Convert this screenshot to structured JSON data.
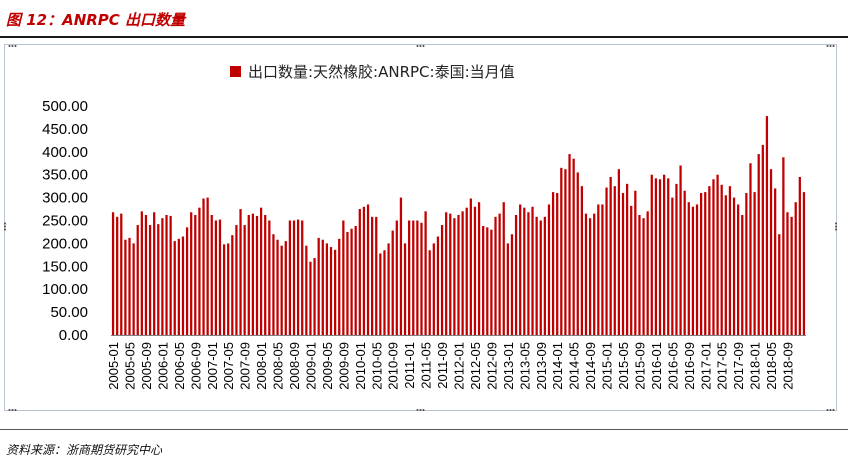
{
  "header": {
    "title": "图 12：ANRPC 出口数量"
  },
  "footer": {
    "source": "资料来源：浙商期货研究中心"
  },
  "colors": {
    "bar": "#c00000",
    "title": "#c00000",
    "frame": "#b8c4d2"
  },
  "chart_data": {
    "type": "bar",
    "legend": "出口数量:天然橡胶:ANRPC:泰国:当月值",
    "legend_position": "top",
    "ylim": [
      0,
      500
    ],
    "y_ticks": [
      "0.00",
      "50.00",
      "100.00",
      "150.00",
      "200.00",
      "250.00",
      "300.00",
      "350.00",
      "400.00",
      "450.00",
      "500.00"
    ],
    "grid": false,
    "x_tick_labels": [
      "2005-01",
      "2005-05",
      "2005-09",
      "2006-01",
      "2006-05",
      "2006-09",
      "2007-01",
      "2007-05",
      "2007-09",
      "2008-01",
      "2008-05",
      "2008-09",
      "2009-01",
      "2009-05",
      "2009-09",
      "2010-01",
      "2010-05",
      "2010-09",
      "2011-01",
      "2011-05",
      "2011-09",
      "2012-01",
      "2012-05",
      "2012-09",
      "2013-01",
      "2013-05",
      "2013-09",
      "2014-01",
      "2014-05",
      "2014-09",
      "2015-01",
      "2015-05",
      "2015-09",
      "2016-01",
      "2016-05",
      "2016-09",
      "2017-01",
      "2017-05",
      "2017-09",
      "2018-01",
      "2018-05",
      "2018-09"
    ],
    "x_start": "2005-01",
    "values": [
      268,
      258,
      265,
      208,
      212,
      200,
      240,
      270,
      262,
      240,
      268,
      242,
      255,
      262,
      260,
      205,
      210,
      215,
      235,
      268,
      262,
      278,
      298,
      300,
      262,
      250,
      252,
      198,
      200,
      218,
      240,
      275,
      240,
      262,
      265,
      260,
      278,
      262,
      250,
      220,
      208,
      195,
      205,
      250,
      250,
      252,
      250,
      195,
      160,
      168,
      212,
      208,
      200,
      192,
      186,
      210,
      250,
      225,
      232,
      238,
      275,
      280,
      285,
      258,
      258,
      178,
      185,
      200,
      228,
      250,
      300,
      200,
      250,
      250,
      250,
      245,
      270,
      185,
      200,
      215,
      240,
      268,
      265,
      255,
      262,
      270,
      278,
      298,
      280,
      290,
      238,
      235,
      230,
      258,
      265,
      290,
      200,
      220,
      262,
      285,
      278,
      268,
      280,
      258,
      250,
      258,
      285,
      312,
      310,
      365,
      362,
      395,
      385,
      355,
      325,
      265,
      255,
      265,
      285,
      285,
      322,
      345,
      325,
      362,
      310,
      330,
      282,
      315,
      262,
      255,
      270,
      350,
      342,
      340,
      350,
      342,
      300,
      330,
      370,
      315,
      290,
      280,
      285,
      310,
      312,
      325,
      340,
      350,
      328,
      305,
      325,
      300,
      285,
      262,
      310,
      375,
      312,
      395,
      415,
      478,
      362,
      320,
      220,
      388,
      268,
      258,
      290,
      345,
      312
    ]
  }
}
